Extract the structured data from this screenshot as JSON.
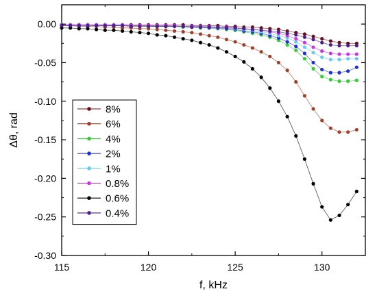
{
  "chart_data": {
    "type": "line",
    "xlabel": "f, kHz",
    "ylabel": "Δθ,  rad",
    "xlim": [
      115,
      132.5
    ],
    "ylim": [
      -0.3,
      0.025
    ],
    "xticks": [
      {
        "value": 115,
        "label": "115"
      },
      {
        "value": 120,
        "label": "120"
      },
      {
        "value": 125,
        "label": "125"
      },
      {
        "value": 130,
        "label": "130"
      }
    ],
    "yticks": [
      {
        "value": 0,
        "label": "0.00"
      },
      {
        "value": -0.05,
        "label": "-0.05"
      },
      {
        "value": -0.1,
        "label": "-0.10"
      },
      {
        "value": -0.15,
        "label": "-0.15"
      },
      {
        "value": -0.2,
        "label": "-0.20"
      },
      {
        "value": -0.25,
        "label": "-0.25"
      },
      {
        "value": -0.3,
        "label": "-0.30"
      }
    ],
    "x": [
      115.0,
      115.5,
      116.0,
      116.5,
      117.0,
      117.5,
      118.0,
      118.5,
      119.0,
      119.5,
      120.0,
      120.5,
      121.0,
      121.5,
      122.0,
      122.5,
      123.0,
      123.5,
      124.0,
      124.5,
      125.0,
      125.5,
      126.0,
      126.5,
      127.0,
      127.5,
      128.0,
      128.5,
      129.0,
      129.5,
      130.0,
      130.5,
      131.0,
      131.5,
      132.0
    ],
    "series": [
      {
        "name": "8%",
        "color": "#6b0f1a",
        "values": [
          -0.001,
          -0.001,
          -0.001,
          -0.001,
          -0.001,
          -0.001,
          -0.001,
          -0.001,
          -0.001,
          -0.001,
          -0.001,
          -0.001,
          -0.001,
          -0.001,
          -0.001,
          -0.002,
          -0.002,
          -0.002,
          -0.002,
          -0.003,
          -0.003,
          -0.004,
          -0.004,
          -0.005,
          -0.006,
          -0.007,
          -0.009,
          -0.011,
          -0.013,
          -0.016,
          -0.019,
          -0.022,
          -0.024,
          -0.025,
          -0.025
        ]
      },
      {
        "name": "6%",
        "color": "#a0402a",
        "values": [
          -0.002,
          -0.002,
          -0.003,
          -0.003,
          -0.003,
          -0.004,
          -0.004,
          -0.005,
          -0.005,
          -0.006,
          -0.006,
          -0.007,
          -0.008,
          -0.009,
          -0.01,
          -0.011,
          -0.013,
          -0.015,
          -0.017,
          -0.02,
          -0.023,
          -0.027,
          -0.031,
          -0.036,
          -0.042,
          -0.05,
          -0.06,
          -0.075,
          -0.093,
          -0.11,
          -0.125,
          -0.135,
          -0.14,
          -0.14,
          -0.137
        ]
      },
      {
        "name": "4%",
        "color": "#33cc33",
        "values": [
          -0.001,
          -0.001,
          -0.001,
          -0.001,
          -0.002,
          -0.002,
          -0.002,
          -0.002,
          -0.002,
          -0.002,
          -0.003,
          -0.003,
          -0.003,
          -0.003,
          -0.004,
          -0.004,
          -0.005,
          -0.005,
          -0.006,
          -0.007,
          -0.008,
          -0.01,
          -0.012,
          -0.014,
          -0.017,
          -0.021,
          -0.027,
          -0.034,
          -0.045,
          -0.058,
          -0.068,
          -0.072,
          -0.074,
          -0.074,
          -0.073
        ]
      },
      {
        "name": "2%",
        "color": "#1f2fd8",
        "values": [
          -0.001,
          -0.001,
          -0.001,
          -0.001,
          -0.001,
          -0.002,
          -0.002,
          -0.002,
          -0.002,
          -0.002,
          -0.002,
          -0.003,
          -0.003,
          -0.003,
          -0.003,
          -0.004,
          -0.004,
          -0.005,
          -0.005,
          -0.006,
          -0.007,
          -0.009,
          -0.01,
          -0.012,
          -0.015,
          -0.018,
          -0.023,
          -0.029,
          -0.038,
          -0.05,
          -0.059,
          -0.063,
          -0.063,
          -0.061,
          -0.056
        ]
      },
      {
        "name": "1%",
        "color": "#66ccee",
        "values": [
          -0.001,
          -0.001,
          -0.001,
          -0.001,
          -0.001,
          -0.001,
          -0.001,
          -0.002,
          -0.002,
          -0.002,
          -0.002,
          -0.002,
          -0.002,
          -0.003,
          -0.003,
          -0.003,
          -0.003,
          -0.004,
          -0.004,
          -0.005,
          -0.006,
          -0.007,
          -0.008,
          -0.01,
          -0.012,
          -0.015,
          -0.018,
          -0.023,
          -0.03,
          -0.037,
          -0.043,
          -0.046,
          -0.046,
          -0.045,
          -0.045
        ]
      },
      {
        "name": "0.8%",
        "color": "#cc33e6",
        "values": [
          -0.001,
          -0.001,
          -0.001,
          -0.001,
          -0.001,
          -0.001,
          -0.001,
          -0.001,
          -0.002,
          -0.002,
          -0.002,
          -0.002,
          -0.002,
          -0.002,
          -0.003,
          -0.003,
          -0.003,
          -0.003,
          -0.004,
          -0.004,
          -0.005,
          -0.006,
          -0.007,
          -0.008,
          -0.01,
          -0.012,
          -0.015,
          -0.019,
          -0.024,
          -0.03,
          -0.035,
          -0.038,
          -0.039,
          -0.039,
          -0.039
        ]
      },
      {
        "name": "0.6%",
        "color": "#000000",
        "values": [
          -0.005,
          -0.005,
          -0.006,
          -0.006,
          -0.007,
          -0.008,
          -0.008,
          -0.009,
          -0.01,
          -0.011,
          -0.012,
          -0.014,
          -0.015,
          -0.017,
          -0.019,
          -0.021,
          -0.024,
          -0.027,
          -0.031,
          -0.036,
          -0.042,
          -0.049,
          -0.058,
          -0.069,
          -0.083,
          -0.1,
          -0.12,
          -0.145,
          -0.175,
          -0.207,
          -0.237,
          -0.254,
          -0.248,
          -0.234,
          -0.217
        ]
      },
      {
        "name": "0.4%",
        "color": "#4b1f8a",
        "values": [
          -0.002,
          -0.002,
          -0.002,
          -0.002,
          -0.002,
          -0.002,
          -0.002,
          -0.002,
          -0.003,
          -0.003,
          -0.003,
          -0.003,
          -0.003,
          -0.003,
          -0.003,
          -0.004,
          -0.004,
          -0.004,
          -0.004,
          -0.005,
          -0.005,
          -0.006,
          -0.007,
          -0.008,
          -0.009,
          -0.01,
          -0.012,
          -0.014,
          -0.017,
          -0.02,
          -0.024,
          -0.027,
          -0.028,
          -0.028,
          -0.028
        ]
      }
    ],
    "legend_position": "left-middle",
    "grid": false
  }
}
